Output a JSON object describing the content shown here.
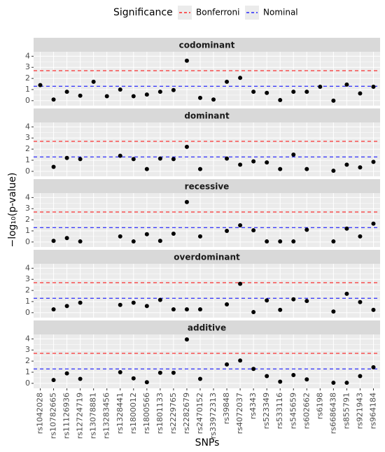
{
  "chart_data": {
    "type": "scatter",
    "legend_title": "Significance",
    "xlabel": "SNPs",
    "ylabel": "−log₁₀(p-value)",
    "grid": true,
    "legend": "top",
    "color": "#000000",
    "ylim": [
      -0.45,
      4.4
    ],
    "yticks": [
      0,
      1,
      2,
      3,
      4
    ],
    "categories": [
      "rs1042028",
      "rs10782665",
      "rs11126936",
      "rs12724719",
      "rs13078881",
      "rs13283456",
      "rs1328441",
      "rs1800012",
      "rs1800566",
      "rs1801133",
      "rs2229765",
      "rs2282679",
      "rs2470152",
      "rs33972313",
      "rs39848",
      "rs4072037",
      "rs4343",
      "rs523349",
      "rs533116",
      "rs545659",
      "rs602662",
      "rs6198",
      "rs6686438",
      "rs855791",
      "rs921943",
      "rs964184"
    ],
    "hlines": [
      {
        "name": "Bonferroni",
        "color": "#ff0000",
        "value": 2.7
      },
      {
        "name": "Nominal",
        "color": "#0000ff",
        "value": 1.3
      }
    ],
    "facets": [
      {
        "title": "codominant",
        "values": [
          1.4,
          0.1,
          0.8,
          0.45,
          1.7,
          0.4,
          1.0,
          0.4,
          0.55,
          0.8,
          0.95,
          3.6,
          0.25,
          0.1,
          1.7,
          2.05,
          0.8,
          0.7,
          0.05,
          0.8,
          0.8,
          1.25,
          0.0,
          1.45,
          0.65,
          1.25
        ]
      },
      {
        "title": "dominant",
        "values": [
          null,
          0.4,
          1.2,
          1.1,
          null,
          null,
          1.4,
          1.1,
          0.2,
          1.15,
          1.1,
          2.2,
          0.2,
          null,
          1.15,
          0.6,
          0.9,
          0.8,
          0.2,
          1.5,
          0.2,
          null,
          0.05,
          0.6,
          0.35,
          0.85
        ]
      },
      {
        "title": "recessive",
        "values": [
          null,
          0.1,
          0.35,
          0.05,
          null,
          null,
          0.5,
          0.05,
          0.7,
          0.1,
          0.75,
          3.6,
          0.5,
          null,
          1.0,
          1.5,
          1.05,
          0.05,
          0.05,
          0.05,
          1.1,
          null,
          0.05,
          1.2,
          0.5,
          1.65
        ]
      },
      {
        "title": "overdominant",
        "values": [
          null,
          0.3,
          0.6,
          0.9,
          null,
          null,
          0.7,
          0.9,
          0.6,
          1.15,
          0.3,
          0.3,
          0.3,
          null,
          0.75,
          2.6,
          0.05,
          1.1,
          0.25,
          1.2,
          1.05,
          null,
          0.1,
          1.7,
          0.95,
          0.25
        ]
      },
      {
        "title": "additive",
        "values": [
          null,
          0.3,
          0.9,
          0.4,
          null,
          null,
          1.0,
          0.45,
          0.1,
          0.95,
          0.95,
          3.95,
          0.4,
          null,
          1.7,
          2.05,
          1.3,
          0.65,
          0.15,
          0.75,
          0.35,
          null,
          0.05,
          0.05,
          0.65,
          1.45
        ]
      }
    ]
  }
}
